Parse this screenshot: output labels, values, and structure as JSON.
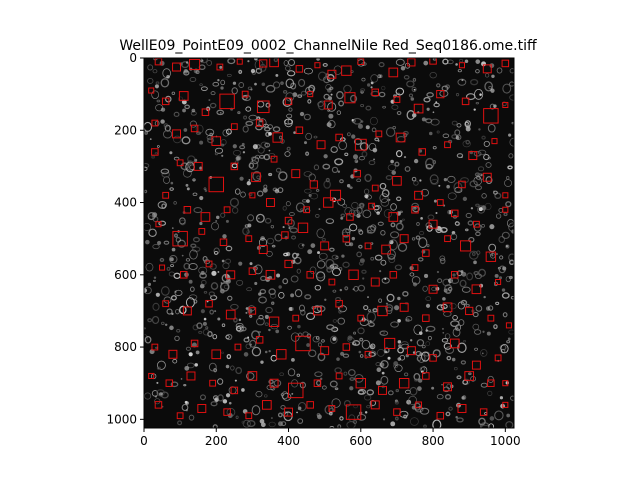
{
  "figure": {
    "title": "WellE09_PointE09_0002_ChannelNile Red_Seq0186.ome.tiff",
    "x_ticks": [
      "0",
      "200",
      "400",
      "600",
      "800",
      "1000"
    ],
    "y_ticks": [
      "0",
      "200",
      "400",
      "600",
      "800",
      "1000"
    ],
    "image": {
      "description_color_background": "#0b0b0b",
      "cell_color": "#9a9a9a",
      "box_color": "#e01010",
      "x_range": [
        0,
        1024
      ],
      "y_range": [
        0,
        1024
      ]
    },
    "detections": [
      [
        40,
        10,
        18
      ],
      [
        90,
        25,
        22
      ],
      [
        140,
        18,
        28
      ],
      [
        210,
        25,
        16
      ],
      [
        265,
        10,
        14
      ],
      [
        330,
        15,
        20
      ],
      [
        360,
        12,
        24
      ],
      [
        430,
        30,
        18
      ],
      [
        480,
        20,
        14
      ],
      [
        520,
        45,
        22
      ],
      [
        560,
        35,
        26
      ],
      [
        600,
        10,
        16
      ],
      [
        690,
        40,
        24
      ],
      [
        740,
        12,
        20
      ],
      [
        800,
        8,
        18
      ],
      [
        880,
        20,
        14
      ],
      [
        950,
        30,
        22
      ],
      [
        1000,
        15,
        18
      ],
      [
        20,
        90,
        14
      ],
      [
        60,
        120,
        18
      ],
      [
        110,
        105,
        24
      ],
      [
        170,
        150,
        18
      ],
      [
        230,
        120,
        40
      ],
      [
        280,
        100,
        16
      ],
      [
        330,
        135,
        32
      ],
      [
        400,
        120,
        18
      ],
      [
        460,
        100,
        14
      ],
      [
        510,
        130,
        22
      ],
      [
        570,
        110,
        28
      ],
      [
        640,
        95,
        18
      ],
      [
        700,
        115,
        16
      ],
      [
        760,
        140,
        24
      ],
      [
        820,
        100,
        20
      ],
      [
        890,
        120,
        18
      ],
      [
        960,
        160,
        40
      ],
      [
        1000,
        130,
        14
      ],
      [
        30,
        180,
        16
      ],
      [
        90,
        210,
        22
      ],
      [
        140,
        195,
        18
      ],
      [
        200,
        230,
        24
      ],
      [
        250,
        190,
        16
      ],
      [
        320,
        180,
        18
      ],
      [
        370,
        220,
        26
      ],
      [
        430,
        200,
        18
      ],
      [
        490,
        240,
        22
      ],
      [
        540,
        220,
        18
      ],
      [
        600,
        240,
        30
      ],
      [
        650,
        210,
        16
      ],
      [
        710,
        220,
        24
      ],
      [
        770,
        260,
        18
      ],
      [
        840,
        240,
        16
      ],
      [
        910,
        270,
        22
      ],
      [
        970,
        230,
        14
      ],
      [
        30,
        260,
        18
      ],
      [
        100,
        290,
        16
      ],
      [
        150,
        300,
        22
      ],
      [
        200,
        350,
        40
      ],
      [
        250,
        300,
        18
      ],
      [
        310,
        330,
        24
      ],
      [
        360,
        280,
        16
      ],
      [
        420,
        320,
        22
      ],
      [
        470,
        350,
        20
      ],
      [
        530,
        380,
        28
      ],
      [
        590,
        320,
        18
      ],
      [
        640,
        360,
        16
      ],
      [
        700,
        340,
        24
      ],
      [
        760,
        380,
        22
      ],
      [
        820,
        400,
        16
      ],
      [
        880,
        350,
        18
      ],
      [
        950,
        330,
        22
      ],
      [
        1000,
        380,
        14
      ],
      [
        60,
        380,
        16
      ],
      [
        120,
        420,
        18
      ],
      [
        170,
        440,
        24
      ],
      [
        230,
        420,
        16
      ],
      [
        300,
        380,
        14
      ],
      [
        350,
        400,
        22
      ],
      [
        400,
        450,
        18
      ],
      [
        450,
        420,
        16
      ],
      [
        510,
        400,
        26
      ],
      [
        570,
        440,
        18
      ],
      [
        630,
        410,
        16
      ],
      [
        690,
        440,
        24
      ],
      [
        750,
        420,
        18
      ],
      [
        800,
        460,
        22
      ],
      [
        860,
        430,
        18
      ],
      [
        920,
        460,
        16
      ],
      [
        1000,
        420,
        14
      ],
      [
        40,
        460,
        14
      ],
      [
        100,
        500,
        40
      ],
      [
        160,
        480,
        16
      ],
      [
        220,
        510,
        18
      ],
      [
        290,
        500,
        16
      ],
      [
        330,
        530,
        22
      ],
      [
        390,
        490,
        18
      ],
      [
        440,
        470,
        26
      ],
      [
        500,
        520,
        22
      ],
      [
        560,
        500,
        18
      ],
      [
        620,
        520,
        16
      ],
      [
        670,
        530,
        24
      ],
      [
        720,
        500,
        22
      ],
      [
        780,
        540,
        18
      ],
      [
        840,
        500,
        16
      ],
      [
        890,
        520,
        28
      ],
      [
        960,
        550,
        26
      ],
      [
        50,
        580,
        14
      ],
      [
        110,
        600,
        18
      ],
      [
        180,
        570,
        16
      ],
      [
        240,
        600,
        22
      ],
      [
        300,
        590,
        18
      ],
      [
        350,
        600,
        24
      ],
      [
        400,
        570,
        20
      ],
      [
        460,
        600,
        18
      ],
      [
        520,
        620,
        16
      ],
      [
        580,
        600,
        26
      ],
      [
        640,
        620,
        22
      ],
      [
        690,
        600,
        18
      ],
      [
        750,
        580,
        16
      ],
      [
        800,
        640,
        22
      ],
      [
        860,
        600,
        18
      ],
      [
        920,
        640,
        24
      ],
      [
        980,
        620,
        14
      ],
      [
        60,
        680,
        16
      ],
      [
        120,
        700,
        22
      ],
      [
        180,
        680,
        18
      ],
      [
        240,
        710,
        24
      ],
      [
        300,
        700,
        18
      ],
      [
        360,
        730,
        26
      ],
      [
        420,
        720,
        16
      ],
      [
        480,
        700,
        22
      ],
      [
        540,
        680,
        18
      ],
      [
        600,
        720,
        16
      ],
      [
        660,
        700,
        26
      ],
      [
        720,
        690,
        22
      ],
      [
        780,
        720,
        18
      ],
      [
        840,
        690,
        24
      ],
      [
        900,
        700,
        20
      ],
      [
        960,
        720,
        16
      ],
      [
        1010,
        740,
        14
      ],
      [
        30,
        800,
        16
      ],
      [
        80,
        820,
        22
      ],
      [
        140,
        790,
        18
      ],
      [
        200,
        820,
        24
      ],
      [
        260,
        800,
        16
      ],
      [
        320,
        780,
        18
      ],
      [
        380,
        820,
        26
      ],
      [
        440,
        790,
        40
      ],
      [
        500,
        810,
        22
      ],
      [
        560,
        800,
        18
      ],
      [
        620,
        820,
        16
      ],
      [
        680,
        790,
        28
      ],
      [
        740,
        810,
        22
      ],
      [
        800,
        830,
        18
      ],
      [
        860,
        790,
        24
      ],
      [
        920,
        850,
        22
      ],
      [
        980,
        830,
        16
      ],
      [
        20,
        880,
        14
      ],
      [
        70,
        900,
        18
      ],
      [
        130,
        880,
        22
      ],
      [
        190,
        900,
        16
      ],
      [
        250,
        920,
        18
      ],
      [
        300,
        880,
        24
      ],
      [
        360,
        900,
        22
      ],
      [
        420,
        920,
        40
      ],
      [
        480,
        900,
        18
      ],
      [
        540,
        880,
        16
      ],
      [
        600,
        900,
        26
      ],
      [
        660,
        920,
        22
      ],
      [
        720,
        900,
        26
      ],
      [
        780,
        880,
        18
      ],
      [
        840,
        910,
        22
      ],
      [
        900,
        880,
        24
      ],
      [
        960,
        900,
        18
      ],
      [
        1000,
        900,
        14
      ],
      [
        40,
        960,
        18
      ],
      [
        100,
        990,
        16
      ],
      [
        160,
        970,
        22
      ],
      [
        230,
        980,
        18
      ],
      [
        290,
        990,
        16
      ],
      [
        340,
        960,
        24
      ],
      [
        400,
        980,
        22
      ],
      [
        460,
        960,
        18
      ],
      [
        520,
        970,
        16
      ],
      [
        580,
        980,
        40
      ],
      [
        640,
        960,
        22
      ],
      [
        700,
        980,
        18
      ],
      [
        760,
        960,
        16
      ],
      [
        820,
        990,
        18
      ],
      [
        880,
        970,
        22
      ],
      [
        940,
        980,
        18
      ],
      [
        1000,
        960,
        14
      ]
    ],
    "cells_seed": 186
  }
}
